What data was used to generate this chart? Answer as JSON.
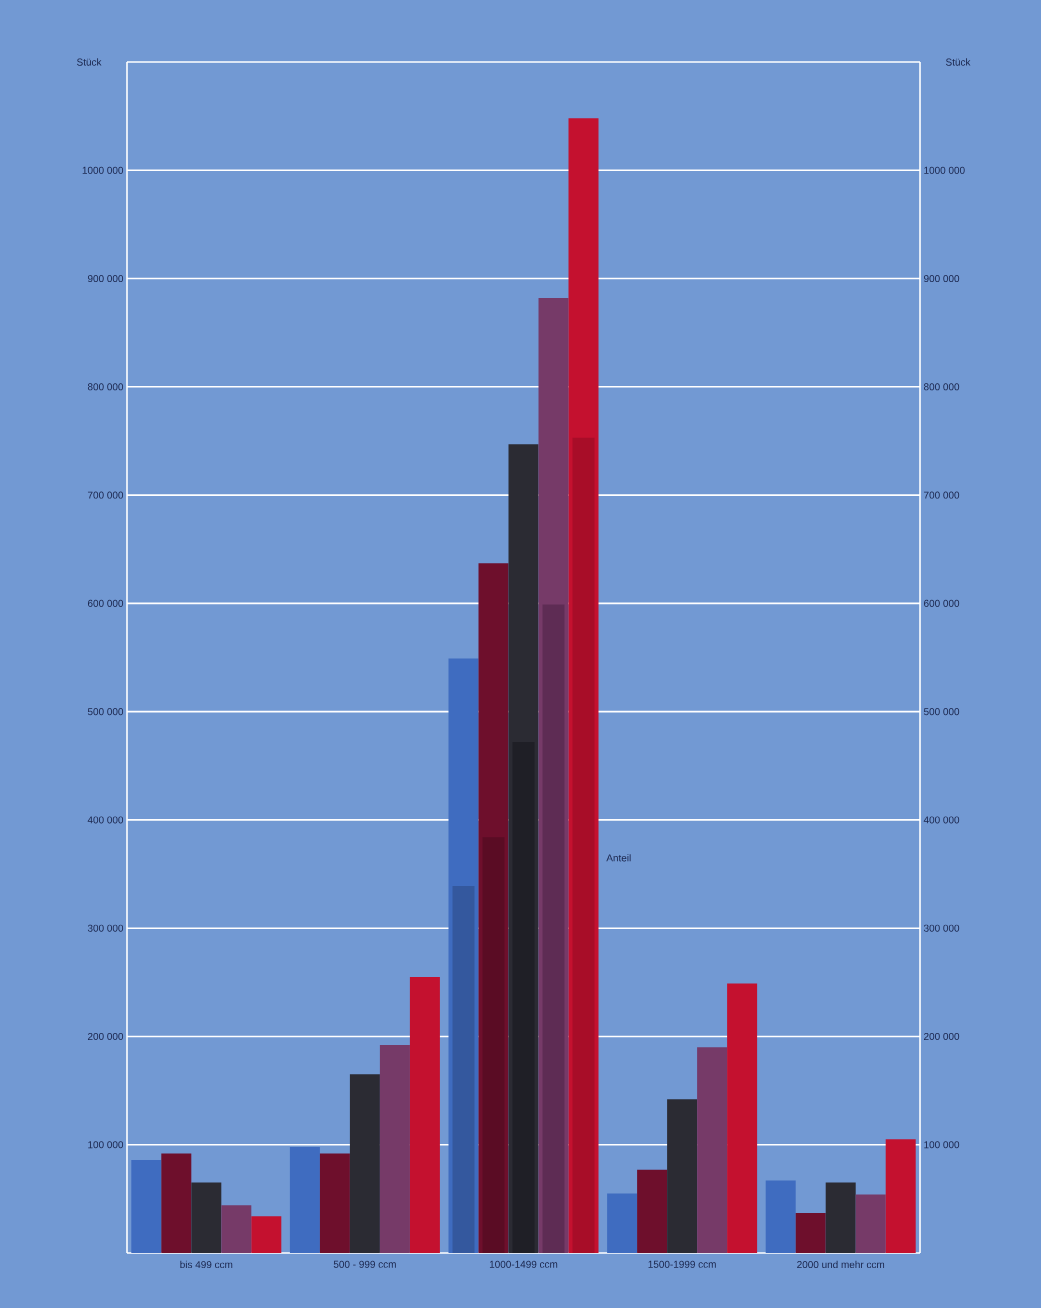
{
  "chart_data": {
    "type": "bar",
    "ylabel": "Stück",
    "y2label": "Stück",
    "categories": [
      "bis 499 ccm",
      "500 - 999 ccm",
      "1000-1499 ccm",
      "1500-1999 ccm",
      "2000 und mehr ccm"
    ],
    "series": [
      {
        "color": "#3f6cc0",
        "values": [
          86000,
          98000,
          549000,
          55000,
          67000
        ]
      },
      {
        "color": "#6e0f2c",
        "values": [
          92000,
          92000,
          637000,
          77000,
          37000
        ]
      },
      {
        "color": "#2b2b33",
        "values": [
          65000,
          165000,
          747000,
          142000,
          65000
        ]
      },
      {
        "color": "#763a68",
        "values": [
          44000,
          192000,
          882000,
          190000,
          54000
        ]
      },
      {
        "color": "#c4112f",
        "values": [
          34000,
          255000,
          1048000,
          249000,
          105000
        ]
      },
      {
        "color": "#34589e",
        "values": [
          null,
          null,
          339000,
          null,
          null
        ]
      },
      {
        "color": "#5a0c24",
        "values": [
          null,
          null,
          384000,
          null,
          null
        ]
      },
      {
        "color": "#1f1f26",
        "values": [
          null,
          null,
          472000,
          null,
          null
        ]
      },
      {
        "color": "#5e2c54",
        "values": [
          null,
          null,
          599000,
          null,
          null
        ]
      },
      {
        "color": "#a80d28",
        "values": [
          null,
          null,
          753000,
          null,
          null
        ]
      }
    ],
    "ylim": [
      0,
      1100000
    ],
    "yticks": [
      {
        "value": 100000,
        "label": "100 000"
      },
      {
        "value": 200000,
        "label": "200 000"
      },
      {
        "value": 300000,
        "label": "300 000"
      },
      {
        "value": 400000,
        "label": "400 000"
      },
      {
        "value": 500000,
        "label": "500 000"
      },
      {
        "value": 600000,
        "label": "600 000"
      },
      {
        "value": 700000,
        "label": "700 000"
      },
      {
        "value": 800000,
        "label": "800 000"
      },
      {
        "value": 900000,
        "label": "900 000"
      },
      {
        "value": 1000000,
        "label": "1000 000"
      },
      {
        "value": 1100000,
        "label": null
      }
    ],
    "y2lim": [
      0,
      1100000
    ],
    "y2ticks": [
      {
        "value": 100000,
        "label": "100 000"
      },
      {
        "value": 200000,
        "label": "200 000"
      },
      {
        "value": 300000,
        "label": "300 000"
      },
      {
        "value": 400000,
        "label": "400 000"
      },
      {
        "value": 500000,
        "label": "500 000"
      },
      {
        "value": 600000,
        "label": "600 000"
      },
      {
        "value": 700000,
        "label": "700 000"
      },
      {
        "value": 800000,
        "label": "800 000"
      },
      {
        "value": 900000,
        "label": "900 000"
      },
      {
        "value": 1000000,
        "label": "1000 000"
      },
      {
        "value": 1100000,
        "label": null
      }
    ],
    "grid": "y",
    "annotations": [
      "Anteil"
    ]
  }
}
